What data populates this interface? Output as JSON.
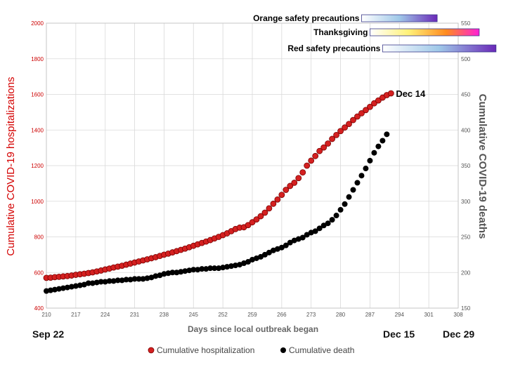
{
  "chart_data": {
    "type": "scatter",
    "xlabel": "Days since local outbreak began",
    "ylabel_left": "Cumulative COVID-19  hospitalizations",
    "ylabel_right": "Cumulative COVID-19  deaths",
    "x_range": [
      210,
      308
    ],
    "x_ticks": [
      210,
      217,
      224,
      231,
      238,
      245,
      252,
      259,
      266,
      273,
      280,
      287,
      294,
      301,
      308
    ],
    "y_left_range": [
      400,
      2000
    ],
    "y_left_ticks": [
      400,
      600,
      800,
      1000,
      1200,
      1400,
      1600,
      1800,
      2000
    ],
    "y_right_range": [
      150,
      550
    ],
    "y_right_ticks": [
      150,
      200,
      250,
      300,
      350,
      400,
      450,
      500,
      550
    ],
    "grid": true,
    "legend_position": "bottom",
    "series": [
      {
        "name": "Cumulative hospitalization",
        "axis": "left",
        "color": "#d42020",
        "x": [
          210,
          211,
          212,
          213,
          214,
          215,
          216,
          217,
          218,
          219,
          220,
          221,
          222,
          223,
          224,
          225,
          226,
          227,
          228,
          229,
          230,
          231,
          232,
          233,
          234,
          235,
          236,
          237,
          238,
          239,
          240,
          241,
          242,
          243,
          244,
          245,
          246,
          247,
          248,
          249,
          250,
          251,
          252,
          253,
          254,
          255,
          256,
          257,
          258,
          259,
          260,
          261,
          262,
          263,
          264,
          265,
          266,
          267,
          268,
          269,
          270,
          271,
          272,
          273,
          274,
          275,
          276,
          277,
          278,
          279,
          280,
          281,
          282,
          283,
          284,
          285,
          286,
          287,
          288,
          289,
          290,
          291,
          292
        ],
        "y": [
          570,
          571,
          574,
          576,
          578,
          580,
          583,
          587,
          590,
          593,
          597,
          601,
          606,
          611,
          617,
          622,
          628,
          633,
          638,
          644,
          650,
          656,
          662,
          668,
          674,
          680,
          686,
          693,
          700,
          706,
          713,
          720,
          727,
          734,
          742,
          750,
          758,
          766,
          774,
          782,
          791,
          800,
          810,
          820,
          832,
          844,
          852,
          854,
          866,
          882,
          898,
          916,
          936,
          960,
          986,
          1010,
          1036,
          1064,
          1086,
          1104,
          1130,
          1162,
          1200,
          1228,
          1254,
          1282,
          1302,
          1324,
          1350,
          1372,
          1394,
          1414,
          1434,
          1456,
          1476,
          1494,
          1512,
          1530,
          1550,
          1566,
          1582,
          1596,
          1606
        ]
      },
      {
        "name": "Cumulative death",
        "axis": "right",
        "color": "#000000",
        "x": [
          210,
          211,
          212,
          213,
          214,
          215,
          216,
          217,
          218,
          219,
          220,
          221,
          222,
          223,
          224,
          225,
          226,
          227,
          228,
          229,
          230,
          231,
          232,
          233,
          234,
          235,
          236,
          237,
          238,
          239,
          240,
          241,
          242,
          243,
          244,
          245,
          246,
          247,
          248,
          249,
          250,
          251,
          252,
          253,
          254,
          255,
          256,
          257,
          258,
          259,
          260,
          261,
          262,
          263,
          264,
          265,
          266,
          267,
          268,
          269,
          270,
          271,
          272,
          273,
          274,
          275,
          276,
          277,
          278,
          279,
          280,
          281,
          282,
          283,
          284,
          285,
          286,
          287,
          288,
          289,
          290,
          291
        ],
        "y": [
          174,
          175,
          176,
          177,
          178,
          179,
          180,
          181,
          182,
          183,
          185,
          185,
          186,
          187,
          187,
          188,
          188,
          189,
          189,
          190,
          190,
          191,
          191,
          191,
          192,
          193,
          195,
          196,
          198,
          199,
          200,
          200,
          201,
          202,
          203,
          204,
          204,
          205,
          205,
          206,
          206,
          206,
          207,
          208,
          209,
          210,
          211,
          213,
          215,
          218,
          220,
          222,
          225,
          228,
          231,
          233,
          235,
          238,
          242,
          245,
          247,
          249,
          253,
          256,
          258,
          262,
          266,
          269,
          274,
          280,
          288,
          296,
          306,
          316,
          326,
          336,
          346,
          357,
          368,
          377,
          385,
          394
        ]
      }
    ],
    "annotations": [
      {
        "text": "Dec 14",
        "x": 292
      }
    ],
    "date_labels": [
      "Sep 22",
      "Dec 15",
      "Dec 29"
    ],
    "period_bars": [
      {
        "label": "Orange safety precautions",
        "start": 285,
        "end": 303
      },
      {
        "label": "Thanksgiving",
        "start": 287,
        "end": 313
      },
      {
        "label": "Red safety precautions",
        "start": 290,
        "end": 317
      }
    ]
  }
}
